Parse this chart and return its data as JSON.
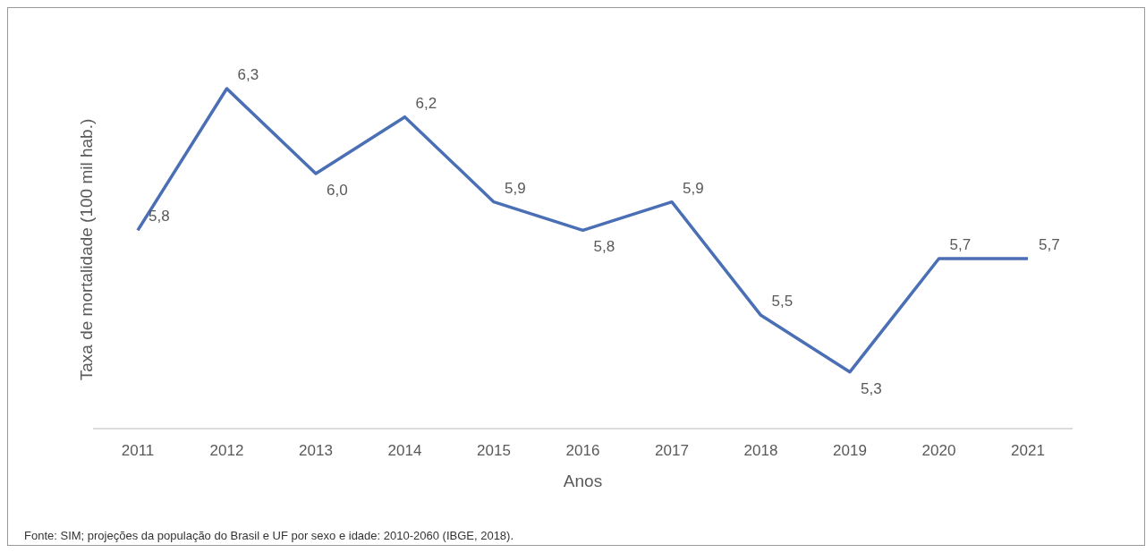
{
  "chart_data": {
    "type": "line",
    "xlabel": "Anos",
    "ylabel": "Taxa de mortalidade (100 mil hab.)",
    "categories": [
      "2011",
      "2012",
      "2013",
      "2014",
      "2015",
      "2016",
      "2017",
      "2018",
      "2019",
      "2020",
      "2021"
    ],
    "series": [
      {
        "color": "#4a6fb5",
        "values": [
          5.8,
          6.3,
          6.0,
          6.2,
          5.9,
          5.8,
          5.9,
          5.5,
          5.3,
          5.7,
          5.7
        ],
        "value_labels": [
          "5,8",
          "6,3",
          "6,0",
          "6,2",
          "5,9",
          "5,8",
          "5,9",
          "5,5",
          "5,3",
          "5,7",
          "5,7"
        ]
      }
    ],
    "marker": "none",
    "annotations": [
      "Fonte: SIM; projeções da população do Brasil e UF por sexo e idade: 2010-2060 (IBGE, 2018)."
    ]
  }
}
